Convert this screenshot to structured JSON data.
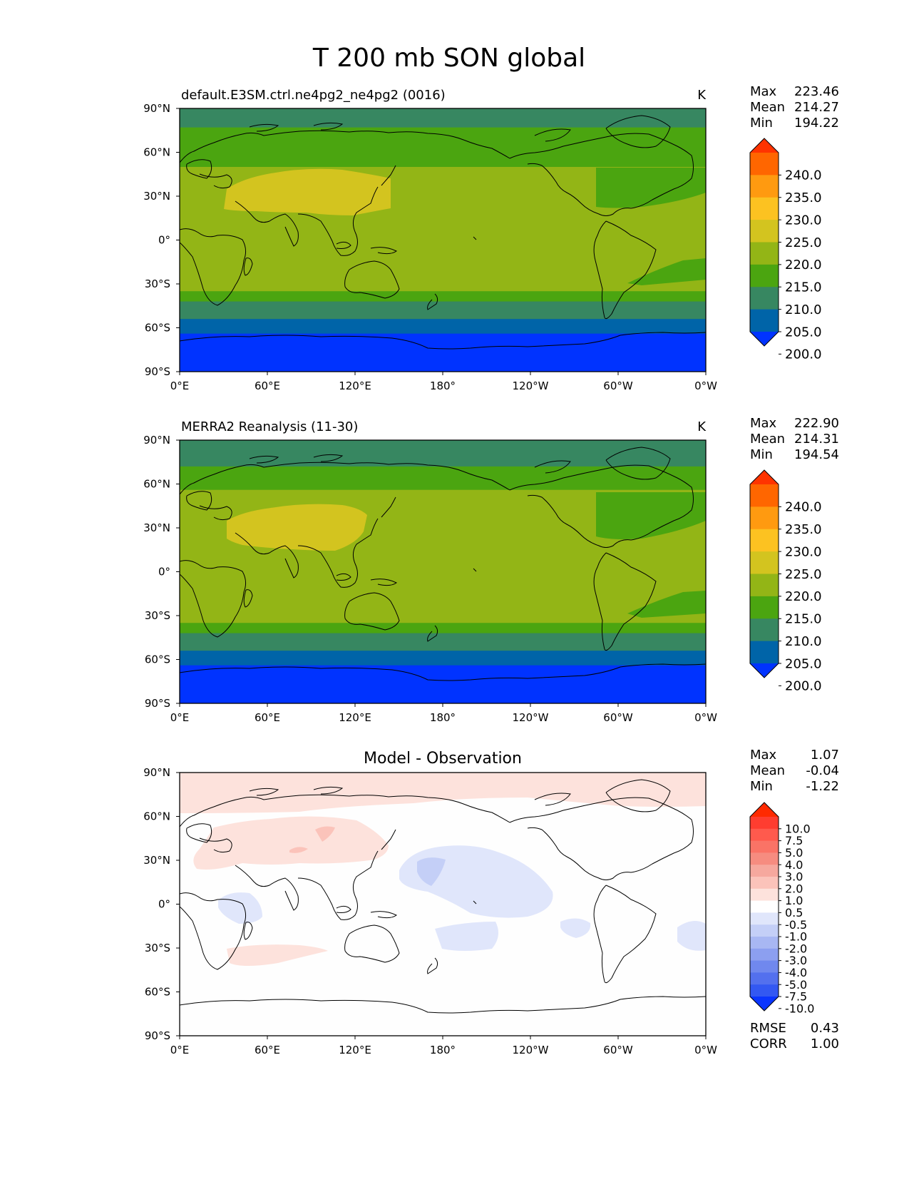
{
  "figure": {
    "title": "T 200 mb SON global"
  },
  "axes": {
    "lat_labels": [
      "90°N",
      "60°N",
      "30°N",
      "0°",
      "30°S",
      "60°S",
      "90°S"
    ],
    "lon_labels": [
      "0°E",
      "60°E",
      "120°E",
      "180°",
      "120°W",
      "60°W",
      "0°W"
    ]
  },
  "panels": [
    {
      "id": "model",
      "title": "default.E3SM.ctrl.ne4pg2_ne4pg2 (0016)",
      "units": "K",
      "stats": [
        {
          "label": "Max",
          "value": "223.46"
        },
        {
          "label": "Mean",
          "value": "214.27"
        },
        {
          "label": "Min",
          "value": "194.22"
        }
      ]
    },
    {
      "id": "obs",
      "title": "MERRA2 Reanalysis (11-30)",
      "units": "K",
      "stats": [
        {
          "label": "Max",
          "value": "222.90"
        },
        {
          "label": "Mean",
          "value": "214.31"
        },
        {
          "label": "Min",
          "value": "194.54"
        }
      ]
    },
    {
      "id": "diff",
      "title": "Model - Observation",
      "units": "",
      "stats": [
        {
          "label": "Max",
          "value": "1.07"
        },
        {
          "label": "Mean",
          "value": "-0.04"
        },
        {
          "label": "Min",
          "value": "-1.22"
        }
      ],
      "metrics": [
        {
          "label": "RMSE",
          "value": "0.43"
        },
        {
          "label": "CORR",
          "value": "1.00"
        }
      ]
    }
  ],
  "colorbars": {
    "temperature": {
      "ticks": [
        "240.0",
        "235.0",
        "230.0",
        "225.0",
        "220.0",
        "215.0",
        "210.0",
        "205.0",
        "200.0"
      ],
      "colors_top_to_bottom": [
        "#ff3300",
        "#ff6600",
        "#ff9a10",
        "#fcc221",
        "#d3c41f",
        "#93b516",
        "#4ba510",
        "#378761",
        "#0064a8",
        "#0033ff"
      ]
    },
    "difference": {
      "ticks": [
        "10.0",
        "7.5",
        "5.0",
        "4.0",
        "3.0",
        "2.0",
        "1.0",
        "0.5",
        "-0.5",
        "-1.0",
        "-2.0",
        "-3.0",
        "-4.0",
        "-5.0",
        "-7.5",
        "-10.0"
      ],
      "colors_top_to_bottom": [
        "#ff2a00",
        "#ff3d30",
        "#ff5a4d",
        "#fa7366",
        "#f68c80",
        "#f6a89e",
        "#fbc3ba",
        "#fde2dc",
        "#ffffff",
        "#e0e6fb",
        "#c4cff7",
        "#a8b7f3",
        "#8c9ff0",
        "#7088ee",
        "#5370ee",
        "#3358f2",
        "#0a35ff"
      ]
    }
  },
  "temperature_bands": {
    "model": [
      {
        "lat_top": 90,
        "color": "#378761"
      },
      {
        "lat_top": 77,
        "color": "#4ba510"
      },
      {
        "lat_top": 50,
        "color": "#93b516"
      },
      {
        "lat_top": -35,
        "color": "#4ba510"
      },
      {
        "lat_top": -42,
        "color": "#378761"
      },
      {
        "lat_top": -54,
        "color": "#0064a8"
      },
      {
        "lat_top": -64,
        "color": "#0033ff"
      }
    ],
    "obs": [
      {
        "lat_top": 90,
        "color": "#378761"
      },
      {
        "lat_top": 72,
        "color": "#4ba510"
      },
      {
        "lat_top": 56,
        "color": "#93b516"
      },
      {
        "lat_top": -35,
        "color": "#4ba510"
      },
      {
        "lat_top": -42,
        "color": "#378761"
      },
      {
        "lat_top": -54,
        "color": "#0064a8"
      },
      {
        "lat_top": -64,
        "color": "#0033ff"
      }
    ]
  }
}
